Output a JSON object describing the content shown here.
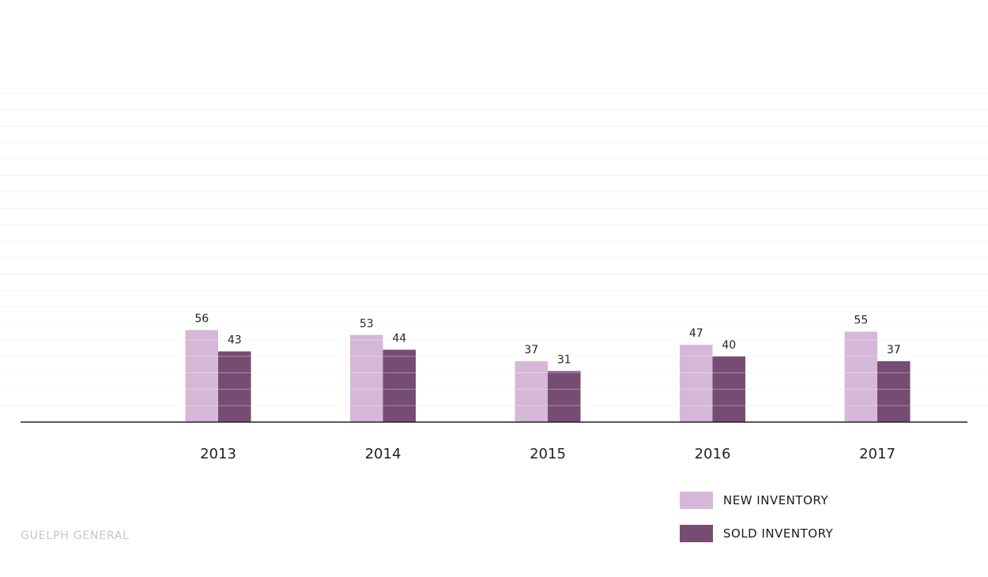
{
  "chart_data": {
    "type": "bar",
    "title": "",
    "xlabel": "",
    "ylabel": "",
    "categories": [
      "2013",
      "2014",
      "2015",
      "2016",
      "2017"
    ],
    "series": [
      {
        "name": "NEW INVENTORY",
        "values": [
          56,
          53,
          37,
          47,
          55
        ],
        "color": "#d5b8d8"
      },
      {
        "name": "SOLD INVENTORY",
        "values": [
          43,
          44,
          31,
          40,
          37
        ],
        "color": "#774c72"
      }
    ],
    "ylim": [
      0,
      200
    ],
    "grid": true,
    "legend_position": "bottom-right",
    "colors": {
      "axis": "#222222",
      "gridline": "#f3f3f3"
    }
  },
  "footer": {
    "brand": "GUELPH GENERAL"
  }
}
